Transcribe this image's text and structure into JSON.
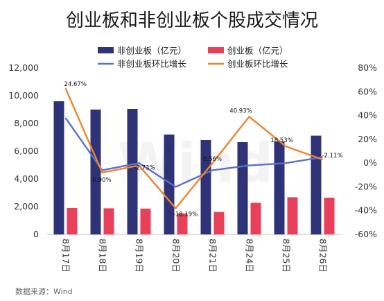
{
  "chart_data": {
    "type": "bar",
    "title": "创业板和非创业板个股成交情况",
    "categories": [
      "8月17日",
      "8月18日",
      "8月19日",
      "8月20日",
      "8月21日",
      "8月24日",
      "8月25日",
      "8月26日"
    ],
    "series": [
      {
        "name": "非创业板（亿元）",
        "type": "bar",
        "axis": "left",
        "color": "#2e3377",
        "values": [
          9600,
          9000,
          9050,
          7200,
          6800,
          6650,
          6700,
          7120
        ]
      },
      {
        "name": "创业板（亿元）",
        "type": "bar",
        "axis": "left",
        "color": "#e8405b",
        "values": [
          1900,
          1880,
          1860,
          1520,
          1620,
          2280,
          2680,
          2650
        ]
      },
      {
        "name": "非创业板环比增长",
        "type": "line",
        "axis": "right",
        "color": "#5b6fcc",
        "values": [
          38,
          -6,
          0,
          -20,
          -6,
          -2,
          0,
          5
        ]
      },
      {
        "name": "创业板环比增长",
        "type": "line",
        "axis": "right",
        "color": "#f0822b",
        "values": [
          63,
          -8,
          -2,
          -38,
          0,
          39,
          14,
          3
        ]
      }
    ],
    "data_labels": [
      "24.67%",
      "-0.90%",
      "-2.73%",
      "-18.19%",
      "8.56%",
      "40.93%",
      "18.53%",
      "-2.11%"
    ],
    "y_left": {
      "ticks": [
        "0",
        "2,000",
        "4,000",
        "6,000",
        "8,000",
        "10,000",
        "12,000"
      ],
      "range": [
        0,
        12000
      ]
    },
    "y_right": {
      "ticks": [
        "-60%",
        "-40%",
        "-20%",
        "0%",
        "20%",
        "40%",
        "60%",
        "80%"
      ],
      "range": [
        -60,
        80
      ]
    },
    "legend_position": "top",
    "grid": false
  },
  "watermark": "Wind",
  "source": "数据来源：Wind"
}
